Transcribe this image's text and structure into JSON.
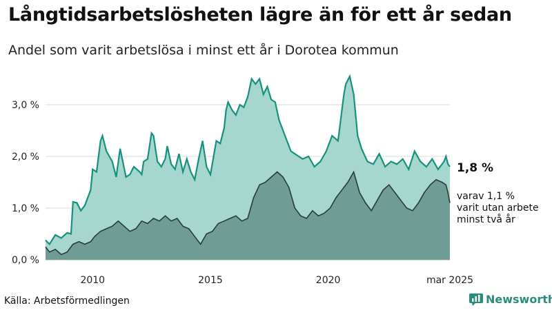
{
  "header": {
    "title": "Långtidsarbetslösheten lägre än för ett år sedan",
    "subtitle": "Andel som varit arbetslösa i minst ett år i Dorotea kommun"
  },
  "footer": {
    "source": "Källa: Arbetsförmedlingen",
    "brand": "Newsworthy"
  },
  "colors": {
    "total_fill": "#a6d7cf",
    "total_line": "#16917d",
    "sub_fill": "#6f9c95",
    "sub_line": "#2a3a37",
    "grid": "#d9d9d9",
    "brand": "#2a8c7d"
  },
  "chart_data": {
    "type": "area",
    "x_start": "2008-01",
    "x_end": "2025-03",
    "frequency": "monthly",
    "x_ticks": [
      "2010",
      "2015",
      "2020",
      "mar 2025"
    ],
    "y_ticks": [
      "0,0 %",
      "1,0 %",
      "2,0 %",
      "3,0 %"
    ],
    "ylim": [
      0,
      3.6
    ],
    "grid": "horizontal",
    "annotations": {
      "last_total": "1,8 %",
      "last_sub_lines": [
        "varav 1,1 %",
        "varit utan arbete",
        "minst två år"
      ]
    },
    "series": [
      {
        "name": "total",
        "points": [
          [
            "2008-01",
            0.38
          ],
          [
            "2008-03",
            0.3
          ],
          [
            "2008-06",
            0.48
          ],
          [
            "2008-09",
            0.42
          ],
          [
            "2008-12",
            0.52
          ],
          [
            "2009-02",
            0.5
          ],
          [
            "2009-03",
            1.12
          ],
          [
            "2009-05",
            1.1
          ],
          [
            "2009-07",
            0.95
          ],
          [
            "2009-09",
            1.05
          ],
          [
            "2009-12",
            1.35
          ],
          [
            "2010-01",
            1.75
          ],
          [
            "2010-03",
            1.7
          ],
          [
            "2010-05",
            2.3
          ],
          [
            "2010-06",
            2.4
          ],
          [
            "2010-08",
            2.1
          ],
          [
            "2010-11",
            1.9
          ],
          [
            "2011-01",
            1.6
          ],
          [
            "2011-03",
            2.15
          ],
          [
            "2011-06",
            1.6
          ],
          [
            "2011-08",
            1.65
          ],
          [
            "2011-10",
            1.8
          ],
          [
            "2012-01",
            1.7
          ],
          [
            "2012-02",
            1.65
          ],
          [
            "2012-03",
            1.9
          ],
          [
            "2012-05",
            1.95
          ],
          [
            "2012-07",
            2.45
          ],
          [
            "2012-08",
            2.4
          ],
          [
            "2012-10",
            1.9
          ],
          [
            "2012-12",
            1.8
          ],
          [
            "2013-02",
            1.95
          ],
          [
            "2013-03",
            2.2
          ],
          [
            "2013-05",
            1.85
          ],
          [
            "2013-07",
            1.75
          ],
          [
            "2013-09",
            2.05
          ],
          [
            "2013-11",
            1.7
          ],
          [
            "2014-01",
            1.95
          ],
          [
            "2014-03",
            1.7
          ],
          [
            "2014-05",
            1.55
          ],
          [
            "2014-07",
            1.95
          ],
          [
            "2014-09",
            2.3
          ],
          [
            "2014-11",
            1.8
          ],
          [
            "2015-01",
            1.65
          ],
          [
            "2015-04",
            2.3
          ],
          [
            "2015-06",
            2.25
          ],
          [
            "2015-08",
            2.55
          ],
          [
            "2015-09",
            2.9
          ],
          [
            "2015-10",
            3.05
          ],
          [
            "2015-12",
            2.9
          ],
          [
            "2016-02",
            2.8
          ],
          [
            "2016-04",
            3.0
          ],
          [
            "2016-06",
            2.95
          ],
          [
            "2016-08",
            3.15
          ],
          [
            "2016-10",
            3.5
          ],
          [
            "2016-12",
            3.4
          ],
          [
            "2017-02",
            3.5
          ],
          [
            "2017-04",
            3.2
          ],
          [
            "2017-06",
            3.35
          ],
          [
            "2017-08",
            3.1
          ],
          [
            "2017-10",
            3.05
          ],
          [
            "2017-12",
            2.7
          ],
          [
            "2018-02",
            2.5
          ],
          [
            "2018-04",
            2.3
          ],
          [
            "2018-06",
            2.1
          ],
          [
            "2018-08",
            2.05
          ],
          [
            "2018-10",
            2.0
          ],
          [
            "2018-12",
            1.95
          ],
          [
            "2019-03",
            2.0
          ],
          [
            "2019-06",
            1.8
          ],
          [
            "2019-09",
            1.9
          ],
          [
            "2019-12",
            2.1
          ],
          [
            "2020-03",
            2.4
          ],
          [
            "2020-06",
            2.3
          ],
          [
            "2020-09",
            3.2
          ],
          [
            "2020-10",
            3.4
          ],
          [
            "2020-12",
            3.55
          ],
          [
            "2021-02",
            3.2
          ],
          [
            "2021-04",
            2.4
          ],
          [
            "2021-06",
            2.15
          ],
          [
            "2021-09",
            1.9
          ],
          [
            "2021-12",
            1.85
          ],
          [
            "2022-03",
            2.05
          ],
          [
            "2022-06",
            1.8
          ],
          [
            "2022-09",
            1.9
          ],
          [
            "2022-12",
            1.85
          ],
          [
            "2023-03",
            1.95
          ],
          [
            "2023-06",
            1.75
          ],
          [
            "2023-09",
            2.1
          ],
          [
            "2023-12",
            1.9
          ],
          [
            "2024-03",
            1.8
          ],
          [
            "2024-06",
            1.95
          ],
          [
            "2024-09",
            1.75
          ],
          [
            "2024-12",
            1.9
          ],
          [
            "2025-01",
            2.0
          ],
          [
            "2025-02",
            1.85
          ],
          [
            "2025-03",
            1.8
          ]
        ]
      },
      {
        "name": "sub",
        "points": [
          [
            "2008-01",
            0.25
          ],
          [
            "2008-03",
            0.15
          ],
          [
            "2008-06",
            0.2
          ],
          [
            "2008-09",
            0.1
          ],
          [
            "2008-12",
            0.15
          ],
          [
            "2009-03",
            0.3
          ],
          [
            "2009-06",
            0.35
          ],
          [
            "2009-09",
            0.3
          ],
          [
            "2009-12",
            0.35
          ],
          [
            "2010-02",
            0.45
          ],
          [
            "2010-05",
            0.55
          ],
          [
            "2010-08",
            0.6
          ],
          [
            "2010-11",
            0.65
          ],
          [
            "2011-02",
            0.75
          ],
          [
            "2011-05",
            0.65
          ],
          [
            "2011-08",
            0.55
          ],
          [
            "2011-11",
            0.6
          ],
          [
            "2012-02",
            0.75
          ],
          [
            "2012-05",
            0.7
          ],
          [
            "2012-08",
            0.8
          ],
          [
            "2012-11",
            0.75
          ],
          [
            "2013-02",
            0.85
          ],
          [
            "2013-05",
            0.75
          ],
          [
            "2013-08",
            0.8
          ],
          [
            "2013-11",
            0.65
          ],
          [
            "2014-02",
            0.6
          ],
          [
            "2014-05",
            0.45
          ],
          [
            "2014-08",
            0.3
          ],
          [
            "2014-11",
            0.5
          ],
          [
            "2015-02",
            0.55
          ],
          [
            "2015-05",
            0.7
          ],
          [
            "2015-08",
            0.75
          ],
          [
            "2015-11",
            0.8
          ],
          [
            "2016-02",
            0.85
          ],
          [
            "2016-05",
            0.75
          ],
          [
            "2016-08",
            0.8
          ],
          [
            "2016-11",
            1.2
          ],
          [
            "2017-02",
            1.45
          ],
          [
            "2017-05",
            1.5
          ],
          [
            "2017-08",
            1.6
          ],
          [
            "2017-11",
            1.7
          ],
          [
            "2018-02",
            1.6
          ],
          [
            "2018-05",
            1.4
          ],
          [
            "2018-08",
            1.0
          ],
          [
            "2018-11",
            0.85
          ],
          [
            "2019-02",
            0.8
          ],
          [
            "2019-05",
            0.95
          ],
          [
            "2019-08",
            0.85
          ],
          [
            "2019-11",
            0.9
          ],
          [
            "2020-02",
            1.0
          ],
          [
            "2020-05",
            1.2
          ],
          [
            "2020-08",
            1.35
          ],
          [
            "2020-11",
            1.5
          ],
          [
            "2021-02",
            1.7
          ],
          [
            "2021-05",
            1.3
          ],
          [
            "2021-08",
            1.1
          ],
          [
            "2021-11",
            0.95
          ],
          [
            "2022-02",
            1.15
          ],
          [
            "2022-05",
            1.35
          ],
          [
            "2022-08",
            1.45
          ],
          [
            "2022-11",
            1.3
          ],
          [
            "2023-02",
            1.15
          ],
          [
            "2023-05",
            1.0
          ],
          [
            "2023-08",
            0.95
          ],
          [
            "2023-11",
            1.1
          ],
          [
            "2024-02",
            1.3
          ],
          [
            "2024-05",
            1.45
          ],
          [
            "2024-08",
            1.55
          ],
          [
            "2024-11",
            1.5
          ],
          [
            "2025-01",
            1.45
          ],
          [
            "2025-02",
            1.3
          ],
          [
            "2025-03",
            1.1
          ]
        ]
      }
    ]
  }
}
